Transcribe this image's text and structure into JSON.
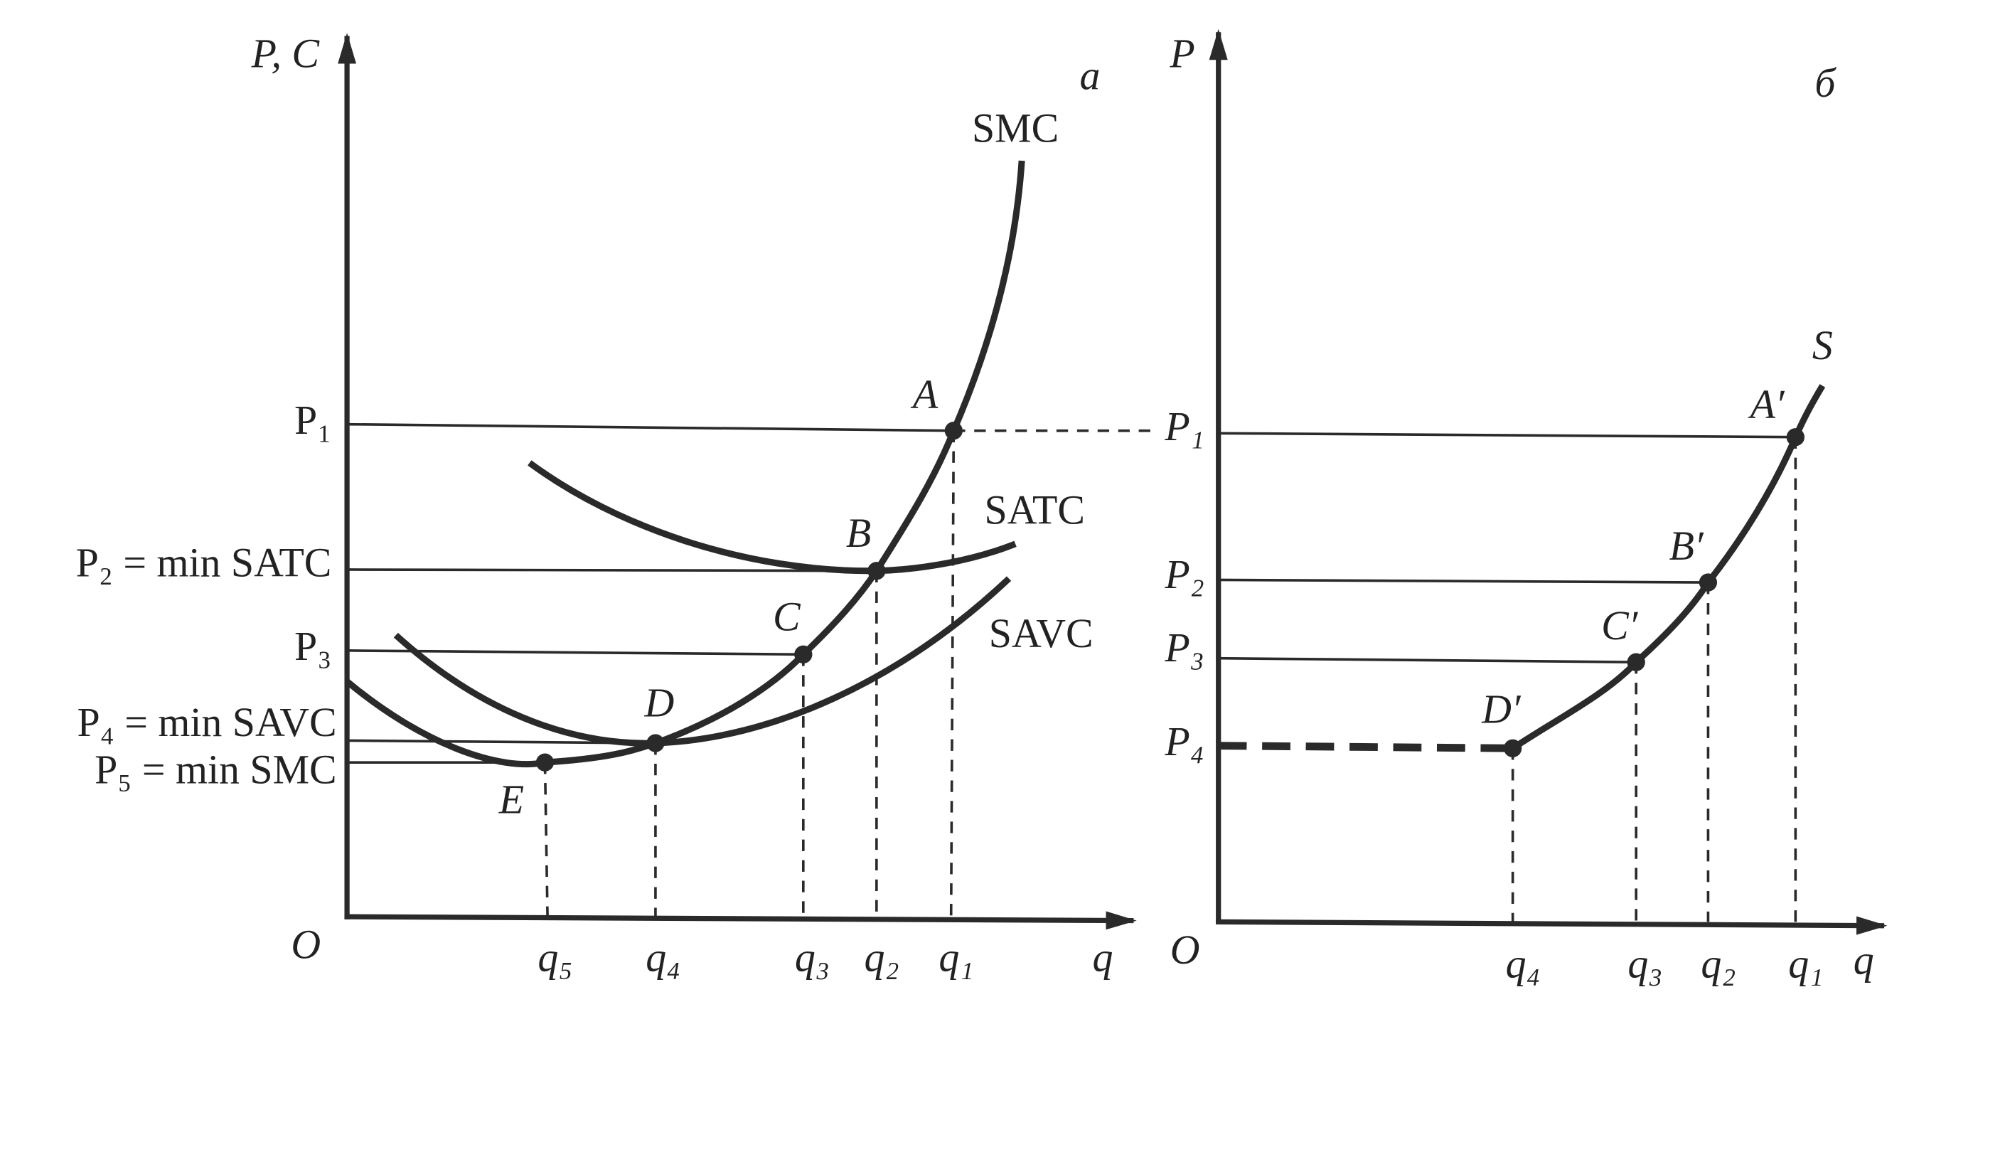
{
  "panels": [
    {
      "label": "а",
      "y_axis": "P, C",
      "x_axis": "q",
      "origin": "O",
      "curves": [
        "SMC",
        "SATC",
        "SAVC"
      ],
      "points": [
        "A",
        "B",
        "C",
        "D",
        "E"
      ],
      "price_labels": [
        "P₁",
        "P₂ = min SATC",
        "P₃",
        "P₄ = min SAVC",
        "P₅ = min SMC"
      ],
      "quantity_labels": [
        "q₅",
        "q₄",
        "q₃",
        "q₂",
        "q₁"
      ]
    },
    {
      "label": "б",
      "y_axis": "P",
      "x_axis": "q",
      "origin": "O",
      "curves": [
        "S"
      ],
      "points": [
        "A′",
        "B′",
        "C′",
        "D′"
      ],
      "price_labels": [
        "P₁",
        "P₂",
        "P₃",
        "P₄"
      ],
      "quantity_labels": [
        "q₄",
        "q₃",
        "q₂",
        "q₁"
      ]
    }
  ]
}
